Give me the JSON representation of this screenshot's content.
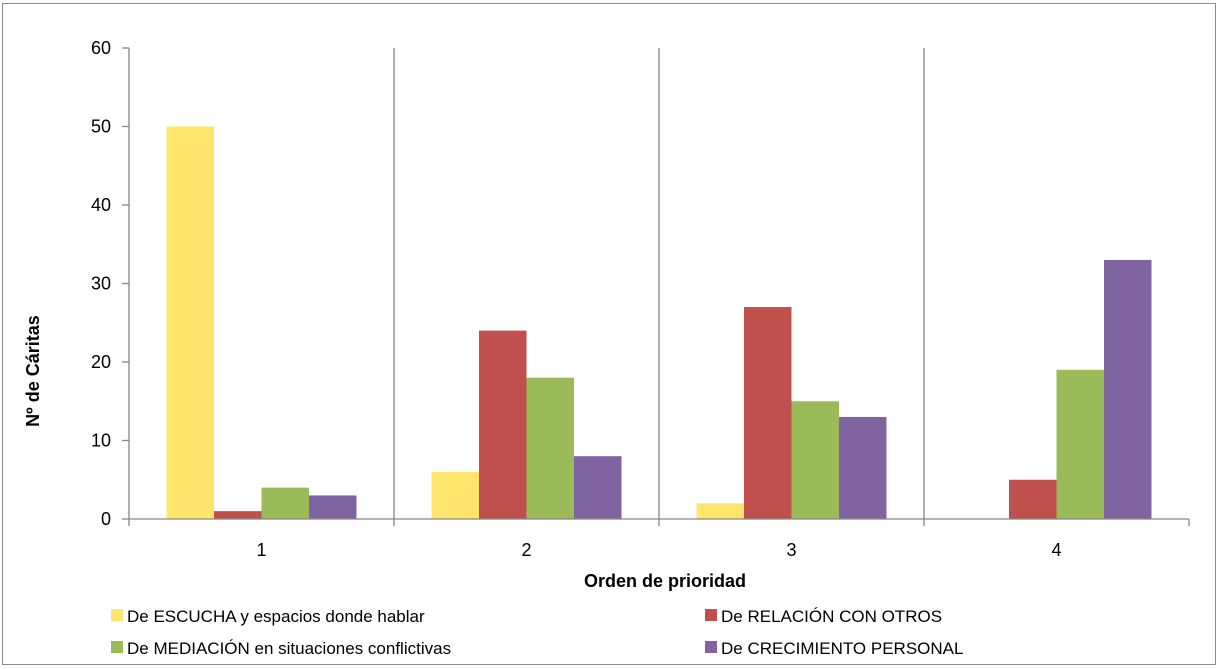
{
  "chart_data": {
    "type": "bar",
    "categories": [
      "1",
      "2",
      "3",
      "4"
    ],
    "series": [
      {
        "name": "De ESCUCHA y espacios donde hablar",
        "values": [
          50,
          6,
          2,
          0
        ],
        "color": "#FFE56B"
      },
      {
        "name": "De RELACIÓN CON OTROS",
        "values": [
          1,
          24,
          27,
          5
        ],
        "color": "#C0504D"
      },
      {
        "name": "De MEDIACIÓN en situaciones conflictivas",
        "values": [
          4,
          18,
          15,
          19
        ],
        "color": "#9BBB59"
      },
      {
        "name": "De CRECIMIENTO PERSONAL",
        "values": [
          3,
          8,
          13,
          33
        ],
        "color": "#8064A2"
      }
    ],
    "title": "",
    "xlabel": "Orden de prioridad",
    "ylabel": "Nº de Cáritas",
    "ylim": [
      0,
      60
    ],
    "yticks": [
      0,
      10,
      20,
      30,
      40,
      50,
      60
    ],
    "grid": "vertical separators between categories",
    "legend_position": "bottom"
  }
}
